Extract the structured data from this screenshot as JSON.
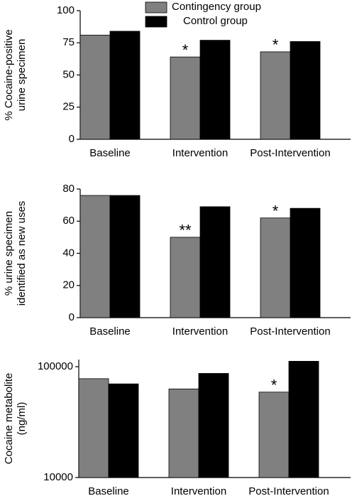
{
  "chart_data": [
    {
      "type": "bar",
      "ylabel": [
        "% Cocaine-positive",
        "urine specimen"
      ],
      "categories": [
        "Baseline",
        "Intervention",
        "Post-Intervention"
      ],
      "series": [
        {
          "name": "Contingency group",
          "color": "#808080",
          "values": [
            81,
            64,
            68
          ],
          "annotations": [
            null,
            "*",
            "*"
          ]
        },
        {
          "name": "Control group",
          "color": "#000000",
          "values": [
            84,
            77,
            76
          ]
        }
      ],
      "ylim": [
        0,
        100
      ],
      "yticks": [
        0,
        25,
        50,
        75,
        100
      ]
    },
    {
      "type": "bar",
      "ylabel": [
        "% urine specimen",
        "identified as new uses"
      ],
      "categories": [
        "Baseline",
        "Intervention",
        "Post-Intervention"
      ],
      "series": [
        {
          "color": "#808080",
          "values": [
            76,
            50,
            62
          ],
          "annotations": [
            null,
            "**",
            "*"
          ]
        },
        {
          "color": "#000000",
          "values": [
            76,
            69,
            68
          ]
        }
      ],
      "ylim": [
        0,
        80
      ],
      "yticks": [
        0,
        20,
        40,
        60,
        80
      ]
    },
    {
      "type": "bar",
      "log_scale": true,
      "ylabel": [
        "Cocaine metabolite",
        "(ng/ml)"
      ],
      "categories": [
        "Baseline",
        "Intervention",
        "Post-Intervention"
      ],
      "series": [
        {
          "color": "#808080",
          "values": [
            78000,
            63000,
            59000
          ],
          "annotations": [
            null,
            null,
            "*"
          ]
        },
        {
          "color": "#000000",
          "values": [
            70000,
            87000,
            112000
          ]
        }
      ],
      "ylim": [
        10000,
        116000
      ],
      "yticks": [
        10000,
        100000
      ]
    }
  ]
}
